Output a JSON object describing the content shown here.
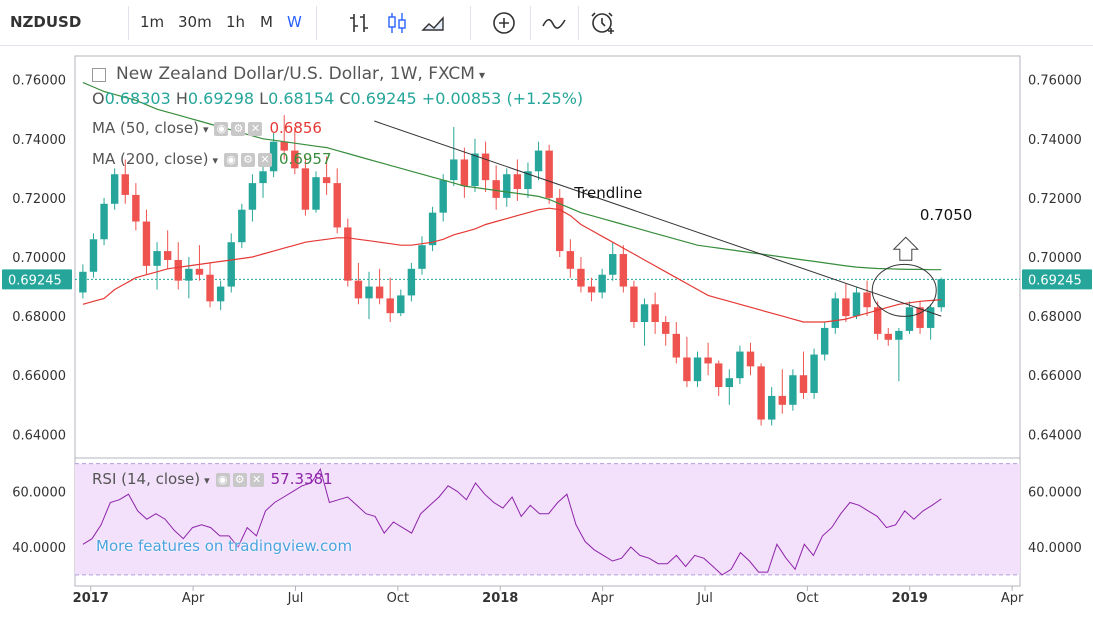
{
  "toolbar": {
    "symbol": "NZDUSD",
    "intervals": [
      "1m",
      "30m",
      "1h",
      "M",
      "W"
    ],
    "active_interval": "W",
    "icons": [
      "bar-chart-icon",
      "candlestick-icon",
      "area-chart-icon",
      "add-indicator-icon",
      "compare-icon",
      "alert-clock-icon"
    ]
  },
  "legend": {
    "title": "New Zealand Dollar/U.S. Dollar, 1W, FXCM",
    "ohlc": {
      "o_label": "O",
      "o": "0.68303",
      "h_label": "H",
      "h": "0.69298",
      "l_label": "L",
      "l": "0.68154",
      "c_label": "C",
      "c": "0.69245",
      "change": "+0.00853 (+1.25%)"
    },
    "ma50": {
      "label": "MA (50, close)",
      "value": "0.6856",
      "color": "#e53935"
    },
    "ma200": {
      "label": "MA (200, close)",
      "value": "0.6957",
      "color": "#388e3c"
    },
    "rsi": {
      "label": "RSI (14, close)",
      "value": "57.3381",
      "color": "#8e24aa"
    }
  },
  "watermark": "More features on tradingview.com",
  "colors": {
    "up": "#26a69a",
    "down": "#ef5350",
    "trendline": "#333333",
    "rsi_band": "#f3e0fb",
    "price_line": "#26a69a"
  },
  "chart_data": {
    "type": "candlestick",
    "main": {
      "ylim": [
        0.632,
        0.768
      ],
      "yticks": [
        "0.76000",
        "0.74000",
        "0.72000",
        "0.70000",
        "0.68000",
        "0.66000",
        "0.64000"
      ],
      "ytick_values": [
        0.76,
        0.74,
        0.72,
        0.7,
        0.68,
        0.66,
        0.64
      ],
      "current_price": 0.69245,
      "current_price_label": "0.69245",
      "series_x_range": [
        0,
        109
      ],
      "candles": [
        {
          "o": 0.688,
          "h": 0.6975,
          "l": 0.686,
          "c": 0.695
        },
        {
          "o": 0.695,
          "h": 0.708,
          "l": 0.693,
          "c": 0.706
        },
        {
          "o": 0.706,
          "h": 0.72,
          "l": 0.704,
          "c": 0.718
        },
        {
          "o": 0.718,
          "h": 0.73,
          "l": 0.716,
          "c": 0.728
        },
        {
          "o": 0.728,
          "h": 0.733,
          "l": 0.718,
          "c": 0.721
        },
        {
          "o": 0.721,
          "h": 0.725,
          "l": 0.709,
          "c": 0.712
        },
        {
          "o": 0.712,
          "h": 0.716,
          "l": 0.694,
          "c": 0.697
        },
        {
          "o": 0.697,
          "h": 0.705,
          "l": 0.689,
          "c": 0.702
        },
        {
          "o": 0.702,
          "h": 0.709,
          "l": 0.696,
          "c": 0.699
        },
        {
          "o": 0.699,
          "h": 0.705,
          "l": 0.689,
          "c": 0.692
        },
        {
          "o": 0.692,
          "h": 0.7,
          "l": 0.686,
          "c": 0.696
        },
        {
          "o": 0.696,
          "h": 0.704,
          "l": 0.692,
          "c": 0.694
        },
        {
          "o": 0.694,
          "h": 0.698,
          "l": 0.683,
          "c": 0.685
        },
        {
          "o": 0.685,
          "h": 0.692,
          "l": 0.682,
          "c": 0.69
        },
        {
          "o": 0.69,
          "h": 0.708,
          "l": 0.688,
          "c": 0.705
        },
        {
          "o": 0.705,
          "h": 0.718,
          "l": 0.703,
          "c": 0.716
        },
        {
          "o": 0.716,
          "h": 0.728,
          "l": 0.712,
          "c": 0.725
        },
        {
          "o": 0.725,
          "h": 0.732,
          "l": 0.72,
          "c": 0.729
        },
        {
          "o": 0.729,
          "h": 0.742,
          "l": 0.727,
          "c": 0.739
        },
        {
          "o": 0.739,
          "h": 0.748,
          "l": 0.733,
          "c": 0.736
        },
        {
          "o": 0.736,
          "h": 0.744,
          "l": 0.728,
          "c": 0.73
        },
        {
          "o": 0.73,
          "h": 0.734,
          "l": 0.714,
          "c": 0.716
        },
        {
          "o": 0.716,
          "h": 0.729,
          "l": 0.715,
          "c": 0.727
        },
        {
          "o": 0.727,
          "h": 0.734,
          "l": 0.721,
          "c": 0.725
        },
        {
          "o": 0.725,
          "h": 0.73,
          "l": 0.708,
          "c": 0.71
        },
        {
          "o": 0.71,
          "h": 0.713,
          "l": 0.69,
          "c": 0.692
        },
        {
          "o": 0.692,
          "h": 0.698,
          "l": 0.684,
          "c": 0.686
        },
        {
          "o": 0.686,
          "h": 0.695,
          "l": 0.679,
          "c": 0.69
        },
        {
          "o": 0.69,
          "h": 0.696,
          "l": 0.684,
          "c": 0.686
        },
        {
          "o": 0.686,
          "h": 0.693,
          "l": 0.678,
          "c": 0.681
        },
        {
          "o": 0.681,
          "h": 0.689,
          "l": 0.68,
          "c": 0.687
        },
        {
          "o": 0.687,
          "h": 0.698,
          "l": 0.685,
          "c": 0.696
        },
        {
          "o": 0.696,
          "h": 0.707,
          "l": 0.694,
          "c": 0.704
        },
        {
          "o": 0.704,
          "h": 0.717,
          "l": 0.702,
          "c": 0.715
        },
        {
          "o": 0.715,
          "h": 0.728,
          "l": 0.712,
          "c": 0.726
        },
        {
          "o": 0.726,
          "h": 0.744,
          "l": 0.724,
          "c": 0.733
        },
        {
          "o": 0.733,
          "h": 0.737,
          "l": 0.72,
          "c": 0.724
        },
        {
          "o": 0.724,
          "h": 0.74,
          "l": 0.722,
          "c": 0.735
        },
        {
          "o": 0.735,
          "h": 0.739,
          "l": 0.722,
          "c": 0.726
        },
        {
          "o": 0.726,
          "h": 0.731,
          "l": 0.716,
          "c": 0.72
        },
        {
          "o": 0.72,
          "h": 0.73,
          "l": 0.717,
          "c": 0.728
        },
        {
          "o": 0.728,
          "h": 0.733,
          "l": 0.719,
          "c": 0.723
        },
        {
          "o": 0.723,
          "h": 0.732,
          "l": 0.72,
          "c": 0.729
        },
        {
          "o": 0.729,
          "h": 0.739,
          "l": 0.726,
          "c": 0.736
        },
        {
          "o": 0.736,
          "h": 0.738,
          "l": 0.718,
          "c": 0.72
        },
        {
          "o": 0.72,
          "h": 0.723,
          "l": 0.7,
          "c": 0.702
        },
        {
          "o": 0.702,
          "h": 0.706,
          "l": 0.693,
          "c": 0.696
        },
        {
          "o": 0.696,
          "h": 0.7,
          "l": 0.688,
          "c": 0.69
        },
        {
          "o": 0.69,
          "h": 0.693,
          "l": 0.685,
          "c": 0.688
        },
        {
          "o": 0.688,
          "h": 0.696,
          "l": 0.686,
          "c": 0.694
        },
        {
          "o": 0.694,
          "h": 0.705,
          "l": 0.692,
          "c": 0.701
        },
        {
          "o": 0.701,
          "h": 0.704,
          "l": 0.688,
          "c": 0.69
        },
        {
          "o": 0.69,
          "h": 0.692,
          "l": 0.676,
          "c": 0.678
        },
        {
          "o": 0.678,
          "h": 0.686,
          "l": 0.67,
          "c": 0.684
        },
        {
          "o": 0.684,
          "h": 0.688,
          "l": 0.674,
          "c": 0.678
        },
        {
          "o": 0.678,
          "h": 0.68,
          "l": 0.67,
          "c": 0.674
        },
        {
          "o": 0.674,
          "h": 0.678,
          "l": 0.664,
          "c": 0.666
        },
        {
          "o": 0.666,
          "h": 0.673,
          "l": 0.656,
          "c": 0.658
        },
        {
          "o": 0.658,
          "h": 0.668,
          "l": 0.656,
          "c": 0.666
        },
        {
          "o": 0.666,
          "h": 0.671,
          "l": 0.66,
          "c": 0.664
        },
        {
          "o": 0.664,
          "h": 0.665,
          "l": 0.653,
          "c": 0.656
        },
        {
          "o": 0.656,
          "h": 0.662,
          "l": 0.65,
          "c": 0.659
        },
        {
          "o": 0.659,
          "h": 0.67,
          "l": 0.657,
          "c": 0.668
        },
        {
          "o": 0.668,
          "h": 0.671,
          "l": 0.66,
          "c": 0.663
        },
        {
          "o": 0.663,
          "h": 0.664,
          "l": 0.643,
          "c": 0.645
        },
        {
          "o": 0.645,
          "h": 0.656,
          "l": 0.643,
          "c": 0.653
        },
        {
          "o": 0.653,
          "h": 0.662,
          "l": 0.647,
          "c": 0.65
        },
        {
          "o": 0.65,
          "h": 0.662,
          "l": 0.648,
          "c": 0.66
        },
        {
          "o": 0.66,
          "h": 0.668,
          "l": 0.652,
          "c": 0.654
        },
        {
          "o": 0.654,
          "h": 0.669,
          "l": 0.652,
          "c": 0.667
        },
        {
          "o": 0.667,
          "h": 0.678,
          "l": 0.665,
          "c": 0.676
        },
        {
          "o": 0.676,
          "h": 0.688,
          "l": 0.674,
          "c": 0.686
        },
        {
          "o": 0.686,
          "h": 0.691,
          "l": 0.678,
          "c": 0.68
        },
        {
          "o": 0.68,
          "h": 0.69,
          "l": 0.679,
          "c": 0.688
        },
        {
          "o": 0.688,
          "h": 0.692,
          "l": 0.68,
          "c": 0.683
        },
        {
          "o": 0.683,
          "h": 0.685,
          "l": 0.672,
          "c": 0.674
        },
        {
          "o": 0.674,
          "h": 0.676,
          "l": 0.67,
          "c": 0.672
        },
        {
          "o": 0.672,
          "h": 0.676,
          "l": 0.658,
          "c": 0.675
        },
        {
          "o": 0.675,
          "h": 0.685,
          "l": 0.674,
          "c": 0.683
        },
        {
          "o": 0.683,
          "h": 0.685,
          "l": 0.674,
          "c": 0.676
        },
        {
          "o": 0.676,
          "h": 0.684,
          "l": 0.672,
          "c": 0.683
        },
        {
          "o": 0.683,
          "h": 0.693,
          "l": 0.6815,
          "c": 0.6925
        }
      ],
      "ma50": [
        0.684,
        0.685,
        0.686,
        0.689,
        0.691,
        0.693,
        0.694,
        0.695,
        0.696,
        0.6965,
        0.697,
        0.6975,
        0.698,
        0.6985,
        0.699,
        0.6995,
        0.7,
        0.701,
        0.702,
        0.703,
        0.704,
        0.705,
        0.7055,
        0.706,
        0.7065,
        0.7065,
        0.706,
        0.7055,
        0.705,
        0.7045,
        0.704,
        0.704,
        0.7045,
        0.705,
        0.706,
        0.7075,
        0.7085,
        0.7095,
        0.711,
        0.712,
        0.713,
        0.714,
        0.715,
        0.716,
        0.7165,
        0.716,
        0.714,
        0.711,
        0.709,
        0.707,
        0.705,
        0.703,
        0.701,
        0.699,
        0.697,
        0.695,
        0.693,
        0.691,
        0.689,
        0.687,
        0.686,
        0.685,
        0.684,
        0.683,
        0.682,
        0.681,
        0.68,
        0.679,
        0.678,
        0.678,
        0.678,
        0.6785,
        0.679,
        0.68,
        0.681,
        0.682,
        0.683,
        0.684,
        0.6845,
        0.685,
        0.6853,
        0.6856
      ],
      "ma200": [
        0.759,
        0.7575,
        0.756,
        0.755,
        0.754,
        0.753,
        0.7515,
        0.75,
        0.749,
        0.748,
        0.747,
        0.746,
        0.745,
        0.744,
        0.743,
        0.742,
        0.741,
        0.74,
        0.7395,
        0.739,
        0.7385,
        0.738,
        0.7375,
        0.737,
        0.736,
        0.735,
        0.734,
        0.733,
        0.732,
        0.731,
        0.73,
        0.729,
        0.728,
        0.727,
        0.726,
        0.725,
        0.724,
        0.7235,
        0.723,
        0.7225,
        0.722,
        0.7215,
        0.721,
        0.7205,
        0.7195,
        0.718,
        0.7165,
        0.715,
        0.714,
        0.713,
        0.712,
        0.711,
        0.71,
        0.709,
        0.708,
        0.707,
        0.706,
        0.705,
        0.704,
        0.7035,
        0.703,
        0.7025,
        0.702,
        0.7015,
        0.701,
        0.7005,
        0.7,
        0.6995,
        0.699,
        0.6985,
        0.698,
        0.6975,
        0.697,
        0.6966,
        0.6963,
        0.6961,
        0.696,
        0.6959,
        0.6958,
        0.6958,
        0.6957,
        0.6957
      ],
      "trendline": {
        "from": {
          "x": 37,
          "y": 0.746
        },
        "to": {
          "x": 109,
          "y": 0.68
        },
        "label": "Trendline"
      },
      "target": {
        "label": "0.7050",
        "x": 104.5,
        "y": 0.705
      }
    },
    "rsi": {
      "ylim": [
        26,
        72
      ],
      "band": [
        30,
        70
      ],
      "yticks": [
        "60.0000",
        "40.0000"
      ],
      "ytick_values": [
        60,
        40
      ],
      "values": [
        41,
        43,
        48,
        56,
        57,
        59,
        53,
        50,
        52,
        50,
        46,
        43,
        47,
        48,
        47,
        44,
        44,
        40,
        47,
        44,
        53,
        56,
        58,
        60,
        62,
        63,
        68,
        56,
        57,
        58,
        55,
        52,
        51,
        45,
        49,
        47,
        45,
        52,
        55,
        58,
        62,
        60,
        57,
        63,
        59,
        56,
        54,
        58,
        51,
        55,
        52,
        52,
        56,
        59,
        48,
        42,
        39,
        37,
        35,
        36,
        40,
        37,
        36,
        34,
        34,
        37,
        33,
        37,
        36,
        33,
        30,
        32,
        38,
        35,
        31,
        31,
        41,
        36,
        32,
        41,
        37,
        44,
        47,
        52,
        56,
        55,
        53,
        51,
        47,
        48,
        53,
        50,
        53,
        55,
        57.3
      ],
      "value_label": "57.3381"
    },
    "xticks": [
      "2017",
      "Apr",
      "Jul",
      "Oct",
      "2018",
      "Apr",
      "Jul",
      "Oct",
      "2019",
      "Apr"
    ],
    "xtick_positions": [
      1,
      14,
      27,
      40,
      53,
      66,
      79,
      92,
      105,
      118
    ],
    "x_range": [
      -1,
      119
    ]
  }
}
